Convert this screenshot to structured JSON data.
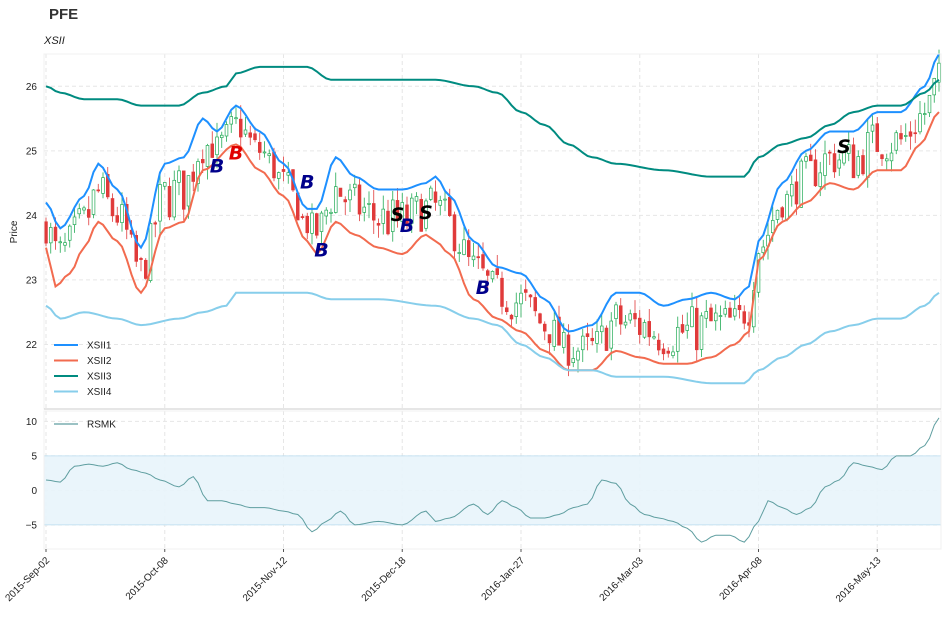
{
  "chart_data": {
    "type": "candlestick+line",
    "title": "PFE",
    "subtitle": "XSII",
    "ylabel": "Price",
    "price_ylim": [
      21.0,
      26.5
    ],
    "price_yticks": [
      22,
      23,
      24,
      25,
      26
    ],
    "osc_ylim": [
      -8.5,
      11.5
    ],
    "osc_yticks": [
      -5,
      0,
      5,
      10
    ],
    "osc_band": [
      -5,
      5
    ],
    "x_tick_labels": [
      "2015-Sep-02",
      "2015-Oct-08",
      "2015-Nov-12",
      "2015-Dec-18",
      "2016-Jan-27",
      "2016-Mar-03",
      "2016-Apr-08",
      "2016-May-13"
    ],
    "x_tick_index": [
      0,
      25,
      50,
      75,
      100,
      125,
      150,
      175
    ],
    "n_days": 189,
    "series": [
      {
        "name": "XSII1",
        "color": "#1e90ff",
        "anchors": [
          [
            0,
            24.2
          ],
          [
            3,
            23.8
          ],
          [
            8,
            24.3
          ],
          [
            11,
            24.8
          ],
          [
            15,
            24.4
          ],
          [
            20,
            23.5
          ],
          [
            25,
            24.8
          ],
          [
            29,
            24.9
          ],
          [
            33,
            25.5
          ],
          [
            36,
            25.3
          ],
          [
            40,
            25.7
          ],
          [
            45,
            25.3
          ],
          [
            50,
            24.8
          ],
          [
            55,
            24.1
          ],
          [
            57,
            24.1
          ],
          [
            61,
            24.9
          ],
          [
            65,
            24.6
          ],
          [
            70,
            24.4
          ],
          [
            75,
            24.4
          ],
          [
            80,
            24.5
          ],
          [
            82,
            24.6
          ],
          [
            85,
            24.3
          ],
          [
            90,
            23.6
          ],
          [
            95,
            23.2
          ],
          [
            100,
            23.1
          ],
          [
            105,
            22.7
          ],
          [
            110,
            22.2
          ],
          [
            115,
            22.3
          ],
          [
            120,
            22.8
          ],
          [
            125,
            22.8
          ],
          [
            130,
            22.6
          ],
          [
            135,
            22.7
          ],
          [
            140,
            22.8
          ],
          [
            145,
            22.7
          ],
          [
            148,
            22.9
          ],
          [
            150,
            23.6
          ],
          [
            155,
            24.5
          ],
          [
            160,
            25.0
          ],
          [
            165,
            25.3
          ],
          [
            170,
            25.3
          ],
          [
            175,
            25.6
          ],
          [
            180,
            25.6
          ],
          [
            185,
            26.0
          ],
          [
            188,
            26.5
          ]
        ]
      },
      {
        "name": "XSII2",
        "color": "#f26b4f",
        "anchors": [
          [
            0,
            23.5
          ],
          [
            2,
            22.9
          ],
          [
            5,
            23.1
          ],
          [
            8,
            23.5
          ],
          [
            11,
            23.9
          ],
          [
            15,
            23.6
          ],
          [
            20,
            22.8
          ],
          [
            25,
            23.8
          ],
          [
            29,
            23.9
          ],
          [
            33,
            24.7
          ],
          [
            40,
            25.1
          ],
          [
            45,
            24.7
          ],
          [
            50,
            24.3
          ],
          [
            55,
            23.6
          ],
          [
            57,
            23.4
          ],
          [
            61,
            23.9
          ],
          [
            65,
            23.7
          ],
          [
            70,
            23.5
          ],
          [
            75,
            23.4
          ],
          [
            80,
            23.7
          ],
          [
            82,
            23.6
          ],
          [
            85,
            23.4
          ],
          [
            90,
            22.7
          ],
          [
            95,
            22.4
          ],
          [
            100,
            22.2
          ],
          [
            105,
            21.9
          ],
          [
            110,
            21.6
          ],
          [
            115,
            21.6
          ],
          [
            120,
            21.9
          ],
          [
            125,
            21.8
          ],
          [
            130,
            21.7
          ],
          [
            135,
            21.7
          ],
          [
            140,
            21.8
          ],
          [
            145,
            22.0
          ],
          [
            148,
            22.2
          ],
          [
            150,
            23.3
          ],
          [
            155,
            23.9
          ],
          [
            160,
            24.2
          ],
          [
            165,
            24.5
          ],
          [
            170,
            24.4
          ],
          [
            175,
            24.7
          ],
          [
            180,
            24.7
          ],
          [
            184,
            25.1
          ],
          [
            188,
            25.6
          ]
        ]
      },
      {
        "name": "XSII3",
        "color": "#008b80",
        "anchors": [
          [
            0,
            26.0
          ],
          [
            3,
            25.9
          ],
          [
            8,
            25.8
          ],
          [
            15,
            25.8
          ],
          [
            20,
            25.7
          ],
          [
            28,
            25.7
          ],
          [
            33,
            25.9
          ],
          [
            38,
            26.0
          ],
          [
            40,
            26.2
          ],
          [
            45,
            26.3
          ],
          [
            55,
            26.3
          ],
          [
            60,
            26.1
          ],
          [
            70,
            26.1
          ],
          [
            82,
            26.1
          ],
          [
            90,
            26.0
          ],
          [
            95,
            25.9
          ],
          [
            100,
            25.6
          ],
          [
            105,
            25.4
          ],
          [
            110,
            25.1
          ],
          [
            115,
            24.9
          ],
          [
            120,
            24.8
          ],
          [
            130,
            24.7
          ],
          [
            140,
            24.6
          ],
          [
            147,
            24.6
          ],
          [
            150,
            24.9
          ],
          [
            155,
            25.1
          ],
          [
            160,
            25.2
          ],
          [
            165,
            25.4
          ],
          [
            170,
            25.6
          ],
          [
            175,
            25.7
          ],
          [
            180,
            25.7
          ],
          [
            185,
            25.9
          ],
          [
            188,
            26.1
          ]
        ]
      },
      {
        "name": "XSII4",
        "color": "#87ceeb",
        "anchors": [
          [
            0,
            22.6
          ],
          [
            3,
            22.4
          ],
          [
            8,
            22.5
          ],
          [
            15,
            22.4
          ],
          [
            20,
            22.3
          ],
          [
            28,
            22.4
          ],
          [
            33,
            22.5
          ],
          [
            38,
            22.6
          ],
          [
            40,
            22.8
          ],
          [
            45,
            22.8
          ],
          [
            55,
            22.8
          ],
          [
            60,
            22.7
          ],
          [
            70,
            22.7
          ],
          [
            82,
            22.6
          ],
          [
            90,
            22.4
          ],
          [
            95,
            22.3
          ],
          [
            100,
            22.0
          ],
          [
            105,
            21.8
          ],
          [
            110,
            21.6
          ],
          [
            115,
            21.6
          ],
          [
            120,
            21.5
          ],
          [
            130,
            21.5
          ],
          [
            140,
            21.4
          ],
          [
            147,
            21.4
          ],
          [
            150,
            21.6
          ],
          [
            155,
            21.8
          ],
          [
            160,
            22.0
          ],
          [
            165,
            22.2
          ],
          [
            170,
            22.3
          ],
          [
            175,
            22.4
          ],
          [
            180,
            22.4
          ],
          [
            185,
            22.6
          ],
          [
            188,
            22.8
          ]
        ]
      }
    ],
    "oscillator": {
      "name": "RSMK",
      "color": "#5f9ea0",
      "anchors": [
        [
          0,
          1.5
        ],
        [
          3,
          1.2
        ],
        [
          6,
          3.5
        ],
        [
          9,
          3.8
        ],
        [
          12,
          3.5
        ],
        [
          15,
          4.0
        ],
        [
          18,
          3.0
        ],
        [
          21,
          2.5
        ],
        [
          24,
          1.5
        ],
        [
          28,
          0.5
        ],
        [
          31,
          2.0
        ],
        [
          34,
          -1.5
        ],
        [
          37,
          -1.5
        ],
        [
          40,
          -2.0
        ],
        [
          43,
          -2.5
        ],
        [
          46,
          -2.5
        ],
        [
          50,
          -3.0
        ],
        [
          53,
          -3.5
        ],
        [
          56,
          -6.0
        ],
        [
          59,
          -4.5
        ],
        [
          62,
          -3.0
        ],
        [
          65,
          -5.0
        ],
        [
          70,
          -4.5
        ],
        [
          75,
          -5.0
        ],
        [
          80,
          -3.0
        ],
        [
          82,
          -4.5
        ],
        [
          85,
          -4.0
        ],
        [
          90,
          -2.0
        ],
        [
          93,
          -3.5
        ],
        [
          96,
          -1.5
        ],
        [
          99,
          -2.5
        ],
        [
          102,
          -4.0
        ],
        [
          105,
          -4.0
        ],
        [
          108,
          -3.5
        ],
        [
          111,
          -2.5
        ],
        [
          114,
          -2.0
        ],
        [
          117,
          1.5
        ],
        [
          120,
          1.0
        ],
        [
          123,
          -2.0
        ],
        [
          126,
          -3.5
        ],
        [
          129,
          -4.0
        ],
        [
          132,
          -4.5
        ],
        [
          135,
          -5.5
        ],
        [
          138,
          -7.5
        ],
        [
          141,
          -6.5
        ],
        [
          144,
          -6.5
        ],
        [
          147,
          -7.5
        ],
        [
          150,
          -4.5
        ],
        [
          152,
          -1.5
        ],
        [
          155,
          -2.5
        ],
        [
          158,
          -3.5
        ],
        [
          161,
          -2.5
        ],
        [
          164,
          0.5
        ],
        [
          167,
          1.5
        ],
        [
          170,
          4.0
        ],
        [
          173,
          3.5
        ],
        [
          176,
          3.0
        ],
        [
          179,
          5.0
        ],
        [
          182,
          5.0
        ],
        [
          185,
          6.5
        ],
        [
          188,
          10.5
        ]
      ]
    },
    "signals": [
      {
        "label": "B",
        "color": "#00008b",
        "day": 36,
        "price": 24.75
      },
      {
        "label": "B",
        "color": "#e00000",
        "day": 40,
        "price": 24.95
      },
      {
        "label": "B",
        "color": "#00008b",
        "day": 55,
        "price": 24.5
      },
      {
        "label": "B",
        "color": "#00008b",
        "day": 58,
        "price": 23.45
      },
      {
        "label": "S",
        "color": "#000000",
        "day": 74,
        "price": 24.0
      },
      {
        "label": "B",
        "color": "#00008b",
        "day": 76,
        "price": 23.83
      },
      {
        "label": "S",
        "color": "#000000",
        "day": 80,
        "price": 24.03
      },
      {
        "label": "B",
        "color": "#00008b",
        "day": 92,
        "price": 22.87
      },
      {
        "label": "S",
        "color": "#000000",
        "day": 168,
        "price": 25.05
      }
    ],
    "legend_price": [
      "XSII1",
      "XSII2",
      "XSII3",
      "XSII4"
    ],
    "legend_osc": [
      "RSMK"
    ],
    "up_color": "#22aa55",
    "down_color": "#e03a3a"
  }
}
